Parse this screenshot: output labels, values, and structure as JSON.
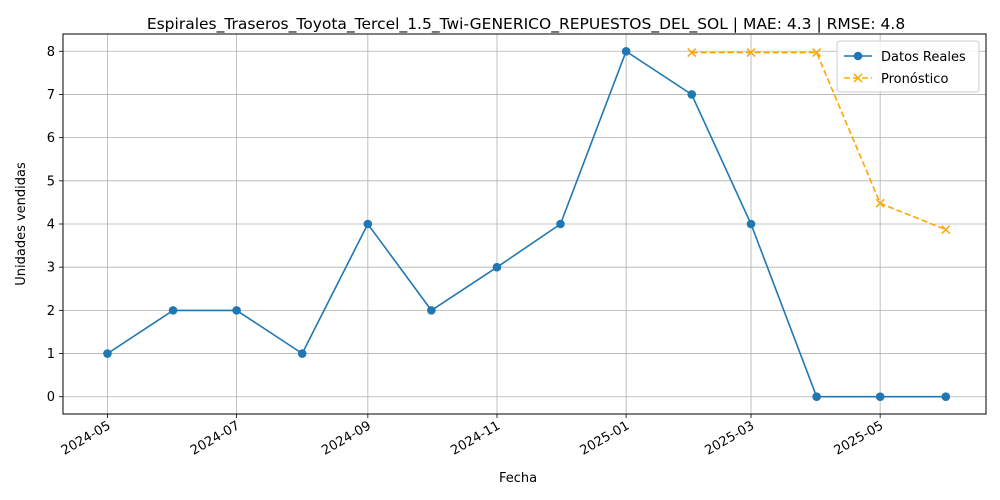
{
  "chart_data": {
    "type": "line",
    "title": "Espirales_Traseros_Toyota_Tercel_1.5_Twi-GENERICO_REPUESTOS_DEL_SOL | MAE: 4.3 | RMSE: 4.8",
    "xlabel": "Fecha",
    "ylabel": "Unidades vendidas",
    "x_tick_labels": [
      "2024-05",
      "2024-07",
      "2024-09",
      "2024-11",
      "2025-01",
      "2025-03",
      "2025-05"
    ],
    "y_tick_labels": [
      "0",
      "1",
      "2",
      "3",
      "4",
      "5",
      "6",
      "7",
      "8"
    ],
    "ylim": [
      -0.4,
      8.4
    ],
    "xlim": [
      "2024-04-10",
      "2025-06-20"
    ],
    "grid": true,
    "legend_position": "top-right",
    "series": [
      {
        "name": "Datos Reales",
        "color": "#1f77b4",
        "marker": "circle",
        "linestyle": "solid",
        "x": [
          "2024-05-01",
          "2024-06-01",
          "2024-07-01",
          "2024-08-01",
          "2024-09-01",
          "2024-10-01",
          "2024-11-01",
          "2024-12-01",
          "2025-01-01",
          "2025-02-01",
          "2025-03-01",
          "2025-04-01",
          "2025-05-01",
          "2025-06-01"
        ],
        "values": [
          1,
          2,
          2,
          1,
          4,
          2,
          3,
          4,
          8,
          7,
          4,
          0,
          0,
          0
        ]
      },
      {
        "name": "Pronóstico",
        "color": "#ffa500",
        "marker": "x",
        "linestyle": "dashed",
        "x": [
          "2025-02-01",
          "2025-03-01",
          "2025-04-01",
          "2025-05-01",
          "2025-06-01"
        ],
        "values": [
          7.97,
          7.97,
          7.97,
          4.48,
          3.87
        ]
      }
    ]
  }
}
